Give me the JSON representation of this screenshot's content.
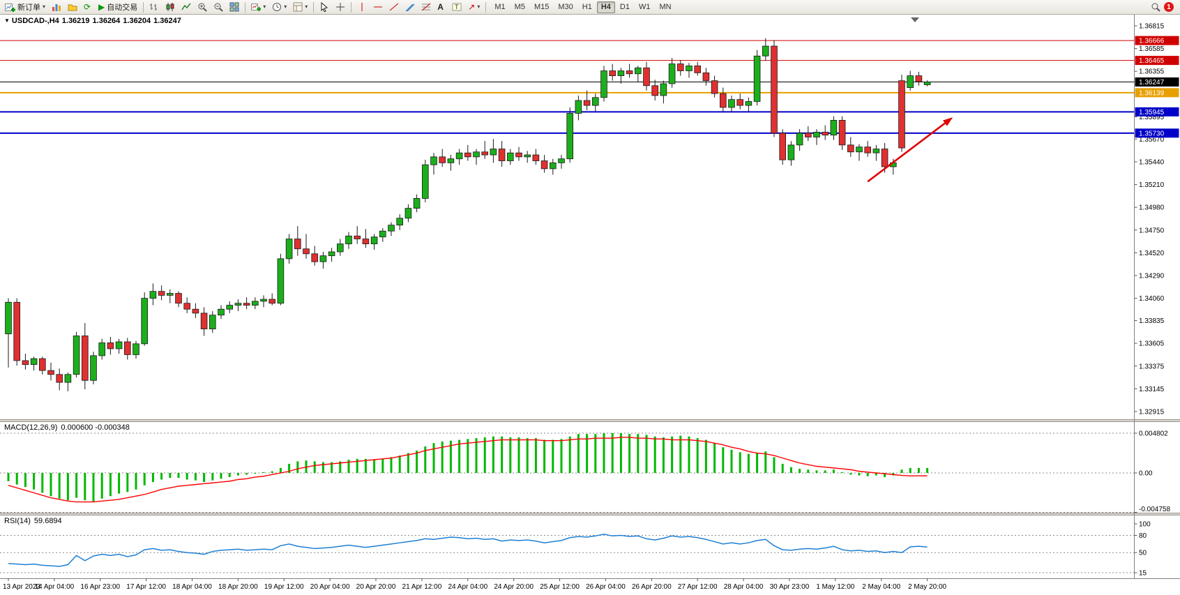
{
  "toolbar": {
    "new_order_label": "新订单",
    "autotrading_label": "自动交易",
    "timeframes": [
      "M1",
      "M5",
      "M15",
      "M30",
      "H1",
      "H4",
      "D1",
      "W1",
      "MN"
    ],
    "active_timeframe": "H4",
    "notification_count": "1"
  },
  "chart_data": [
    {
      "type": "candlestick",
      "title": "USDCAD-,H4",
      "symbol": "USDCAD-",
      "period": "H4",
      "ohlc": {
        "open": "1.36219",
        "high": "1.36264",
        "low": "1.36204",
        "close": "1.36247"
      },
      "up_color": "#1CAF1C",
      "down_color": "#E03030",
      "ylim": [
        1.32837,
        1.36914
      ],
      "y_ticks": [
        "1.36815",
        "1.36585",
        "1.36355",
        "1.35895",
        "1.35670",
        "1.35440",
        "1.35210",
        "1.34980",
        "1.34750",
        "1.34520",
        "1.34290",
        "1.34060",
        "1.33835",
        "1.33605",
        "1.33375",
        "1.33145",
        "1.32915"
      ],
      "levels": [
        {
          "price": 1.36666,
          "label": "1.36666",
          "color": "#D00000",
          "width": 1
        },
        {
          "price": 1.36465,
          "label": "1.36465",
          "color": "#D00000",
          "width": 1
        },
        {
          "price": 1.36247,
          "label": "1.36247",
          "color": "#000000",
          "width": 1
        },
        {
          "price": 1.36139,
          "label": "1.36139",
          "color": "#E8A000",
          "width": 2
        },
        {
          "price": 1.35945,
          "label": "1.35945",
          "color": "#0000C8",
          "width": 2
        },
        {
          "price": 1.3573,
          "label": "1.35730",
          "color": "#0000C8",
          "width": 2
        }
      ],
      "annotation_arrow": {
        "color": "#E00000",
        "from": {
          "bar": 101,
          "price": 1.3524
        },
        "to": {
          "bar": 111,
          "price": 1.3589
        }
      },
      "x_labels": [
        "13 Apr 2023",
        "14 Apr 04:00",
        "16 Apr 23:00",
        "17 Apr 12:00",
        "18 Apr 04:00",
        "18 Apr 20:00",
        "19 Apr 12:00",
        "20 Apr 04:00",
        "20 Apr 20:00",
        "21 Apr 12:00",
        "24 Apr 04:00",
        "24 Apr 20:00",
        "25 Apr 12:00",
        "26 Apr 04:00",
        "26 Apr 20:00",
        "27 Apr 12:00",
        "28 Apr 04:00",
        "30 Apr 23:00",
        "1 May 12:00",
        "2 May 04:00",
        "2 May 20:00"
      ],
      "candles": [
        [
          1.337,
          1.3406,
          1.3336,
          1.3402
        ],
        [
          1.3402,
          1.3406,
          1.3338,
          1.3343
        ],
        [
          1.3343,
          1.335,
          1.3334,
          1.3339
        ],
        [
          1.3339,
          1.3347,
          1.3333,
          1.3345
        ],
        [
          1.3345,
          1.3347,
          1.3329,
          1.3333
        ],
        [
          1.3333,
          1.3341,
          1.3323,
          1.3329
        ],
        [
          1.3329,
          1.3335,
          1.3313,
          1.3321
        ],
        [
          1.3321,
          1.3331,
          1.3312,
          1.3329
        ],
        [
          1.3329,
          1.3372,
          1.3326,
          1.3368
        ],
        [
          1.3368,
          1.3381,
          1.3314,
          1.3323
        ],
        [
          1.3323,
          1.3352,
          1.3319,
          1.3348
        ],
        [
          1.3348,
          1.3365,
          1.3344,
          1.3361
        ],
        [
          1.3361,
          1.3367,
          1.3349,
          1.3355
        ],
        [
          1.3355,
          1.3365,
          1.335,
          1.3362
        ],
        [
          1.3362,
          1.3366,
          1.3344,
          1.3349
        ],
        [
          1.3349,
          1.3363,
          1.3345,
          1.336
        ],
        [
          1.336,
          1.3412,
          1.3358,
          1.3406
        ],
        [
          1.3406,
          1.3421,
          1.3399,
          1.3413
        ],
        [
          1.3413,
          1.3419,
          1.3404,
          1.3409
        ],
        [
          1.3409,
          1.3415,
          1.3401,
          1.3411
        ],
        [
          1.3411,
          1.3413,
          1.3397,
          1.3401
        ],
        [
          1.3401,
          1.3407,
          1.3391,
          1.3395
        ],
        [
          1.3395,
          1.3401,
          1.3386,
          1.3391
        ],
        [
          1.3391,
          1.3397,
          1.3368,
          1.3375
        ],
        [
          1.3375,
          1.3393,
          1.3371,
          1.3389
        ],
        [
          1.3389,
          1.3399,
          1.3385,
          1.3395
        ],
        [
          1.3395,
          1.3403,
          1.3391,
          1.3399
        ],
        [
          1.3399,
          1.3405,
          1.3393,
          1.3401
        ],
        [
          1.3401,
          1.3407,
          1.3395,
          1.3399
        ],
        [
          1.3399,
          1.3407,
          1.3395,
          1.3403
        ],
        [
          1.3403,
          1.3409,
          1.3397,
          1.3405
        ],
        [
          1.3405,
          1.3411,
          1.3399,
          1.3401
        ],
        [
          1.3401,
          1.3451,
          1.3399,
          1.3446
        ],
        [
          1.3446,
          1.3471,
          1.3441,
          1.3466
        ],
        [
          1.3466,
          1.3479,
          1.3449,
          1.3456
        ],
        [
          1.3456,
          1.3471,
          1.3446,
          1.3451
        ],
        [
          1.3451,
          1.3459,
          1.3439,
          1.3443
        ],
        [
          1.3443,
          1.3453,
          1.3436,
          1.3449
        ],
        [
          1.3449,
          1.3457,
          1.3443,
          1.3453
        ],
        [
          1.3453,
          1.3466,
          1.3449,
          1.3461
        ],
        [
          1.3461,
          1.3473,
          1.3456,
          1.3469
        ],
        [
          1.3469,
          1.3479,
          1.3461,
          1.3466
        ],
        [
          1.3466,
          1.3476,
          1.3457,
          1.3461
        ],
        [
          1.3461,
          1.3471,
          1.3455,
          1.3468
        ],
        [
          1.3468,
          1.3477,
          1.3463,
          1.3474
        ],
        [
          1.3474,
          1.3483,
          1.3469,
          1.348
        ],
        [
          1.348,
          1.3491,
          1.3475,
          1.3487
        ],
        [
          1.3487,
          1.3501,
          1.3483,
          1.3497
        ],
        [
          1.3497,
          1.3511,
          1.3493,
          1.3507
        ],
        [
          1.3507,
          1.3546,
          1.3503,
          1.3541
        ],
        [
          1.3541,
          1.3553,
          1.3531,
          1.3549
        ],
        [
          1.3549,
          1.3557,
          1.3539,
          1.3543
        ],
        [
          1.3543,
          1.3551,
          1.3535,
          1.3547
        ],
        [
          1.3547,
          1.3557,
          1.3541,
          1.3553
        ],
        [
          1.3553,
          1.3561,
          1.3545,
          1.3549
        ],
        [
          1.3549,
          1.3557,
          1.3541,
          1.3554
        ],
        [
          1.3554,
          1.3565,
          1.3547,
          1.3551
        ],
        [
          1.3551,
          1.3567,
          1.3543,
          1.3557
        ],
        [
          1.3557,
          1.3565,
          1.3539,
          1.3545
        ],
        [
          1.3545,
          1.3557,
          1.3541,
          1.3553
        ],
        [
          1.3553,
          1.3559,
          1.3545,
          1.3549
        ],
        [
          1.3549,
          1.3555,
          1.3543,
          1.3551
        ],
        [
          1.3551,
          1.3557,
          1.3541,
          1.3545
        ],
        [
          1.3545,
          1.3551,
          1.3533,
          1.3537
        ],
        [
          1.3537,
          1.3547,
          1.3531,
          1.3543
        ],
        [
          1.3543,
          1.3551,
          1.3537,
          1.3547
        ],
        [
          1.3547,
          1.3599,
          1.3543,
          1.3593
        ],
        [
          1.3593,
          1.3611,
          1.3586,
          1.3606
        ],
        [
          1.3606,
          1.3616,
          1.3596,
          1.3601
        ],
        [
          1.3601,
          1.3613,
          1.3595,
          1.3609
        ],
        [
          1.3609,
          1.3641,
          1.3605,
          1.3636
        ],
        [
          1.3636,
          1.3643,
          1.3626,
          1.3631
        ],
        [
          1.3631,
          1.3639,
          1.3623,
          1.3636
        ],
        [
          1.3636,
          1.3643,
          1.3629,
          1.3633
        ],
        [
          1.3633,
          1.3641,
          1.3625,
          1.3639
        ],
        [
          1.3639,
          1.3645,
          1.3616,
          1.3621
        ],
        [
          1.3621,
          1.3627,
          1.3606,
          1.3611
        ],
        [
          1.3611,
          1.3626,
          1.3603,
          1.3623
        ],
        [
          1.3623,
          1.3649,
          1.3619,
          1.3643
        ],
        [
          1.3643,
          1.3647,
          1.3631,
          1.3636
        ],
        [
          1.3636,
          1.3644,
          1.3629,
          1.3641
        ],
        [
          1.3641,
          1.3645,
          1.3631,
          1.3634
        ],
        [
          1.3634,
          1.3639,
          1.3621,
          1.3626
        ],
        [
          1.3626,
          1.3631,
          1.3609,
          1.3613
        ],
        [
          1.3613,
          1.3619,
          1.3595,
          1.3599
        ],
        [
          1.3599,
          1.3611,
          1.3594,
          1.3607
        ],
        [
          1.3607,
          1.3613,
          1.3597,
          1.3601
        ],
        [
          1.3601,
          1.3609,
          1.3595,
          1.3605
        ],
        [
          1.3605,
          1.3657,
          1.3601,
          1.3651
        ],
        [
          1.3651,
          1.3669,
          1.3646,
          1.3661
        ],
        [
          1.3661,
          1.3667,
          1.3569,
          1.3573
        ],
        [
          1.3573,
          1.3577,
          1.3541,
          1.3546
        ],
        [
          1.3546,
          1.3565,
          1.354,
          1.3561
        ],
        [
          1.3561,
          1.3577,
          1.3555,
          1.3573
        ],
        [
          1.3573,
          1.358,
          1.3565,
          1.3569
        ],
        [
          1.3569,
          1.3577,
          1.3561,
          1.3574
        ],
        [
          1.3574,
          1.3581,
          1.3566,
          1.3571
        ],
        [
          1.3571,
          1.359,
          1.3566,
          1.3586
        ],
        [
          1.3586,
          1.359,
          1.3556,
          1.3561
        ],
        [
          1.3561,
          1.3569,
          1.3549,
          1.3554
        ],
        [
          1.3554,
          1.3562,
          1.3545,
          1.3559
        ],
        [
          1.3559,
          1.3565,
          1.3549,
          1.3553
        ],
        [
          1.3553,
          1.3561,
          1.3545,
          1.3557
        ],
        [
          1.3557,
          1.3563,
          1.3533,
          1.3539
        ],
        [
          1.3539,
          1.3547,
          1.3531,
          1.3543
        ],
        [
          1.3626,
          1.3632,
          1.3554,
          1.3558
        ],
        [
          1.3619,
          1.3636,
          1.3616,
          1.3631
        ],
        [
          1.3631,
          1.3635,
          1.3621,
          1.3625
        ],
        [
          1.36219,
          1.36264,
          1.36204,
          1.36247
        ]
      ]
    },
    {
      "type": "macd",
      "label": "MACD(12,26,9)",
      "values_text": "0.000600 -0.000348",
      "y_ticks": [
        "0.004802",
        "0.00",
        "-0.004758"
      ],
      "levels": [
        0.004802,
        0,
        -0.004758
      ],
      "hist_color": "#00B800",
      "signal_color": "#FF0000",
      "histogram": [
        -0.001,
        -0.0014,
        -0.0017,
        -0.002,
        -0.0024,
        -0.0028,
        -0.0031,
        -0.0033,
        -0.003,
        -0.0033,
        -0.0035,
        -0.0031,
        -0.0028,
        -0.0025,
        -0.0023,
        -0.002,
        -0.0015,
        -0.0011,
        -0.0008,
        -0.0006,
        -0.0006,
        -0.0008,
        -0.0009,
        -0.0011,
        -0.0009,
        -0.0007,
        -0.0005,
        -0.0003,
        -0.0002,
        -0.0001,
        0.0001,
        0.0002,
        0.0006,
        0.0011,
        0.0014,
        0.0015,
        0.0014,
        0.0013,
        0.0013,
        0.0014,
        0.0016,
        0.0017,
        0.0017,
        0.0016,
        0.0017,
        0.0019,
        0.0021,
        0.0024,
        0.0027,
        0.0032,
        0.0036,
        0.0038,
        0.0039,
        0.004,
        0.0041,
        0.0042,
        0.0043,
        0.0044,
        0.0044,
        0.0043,
        0.0043,
        0.0042,
        0.0042,
        0.004,
        0.004,
        0.0041,
        0.0044,
        0.0047,
        0.0047,
        0.0047,
        0.0048,
        0.0048,
        0.0048,
        0.0047,
        0.0047,
        0.0046,
        0.0044,
        0.0043,
        0.0044,
        0.0045,
        0.0044,
        0.0042,
        0.004,
        0.0036,
        0.0031,
        0.0028,
        0.0025,
        0.0023,
        0.0024,
        0.0026,
        0.0019,
        0.0011,
        0.0007,
        0.0005,
        0.0004,
        0.0003,
        0.0003,
        0.0004,
        0.0001,
        -0.0002,
        -0.0003,
        -0.0004,
        -0.0003,
        -0.0005,
        -0.0003,
        0.0004,
        0.0006,
        0.0006,
        0.0006
      ],
      "signal": [
        -0.0015,
        -0.0018,
        -0.0021,
        -0.0024,
        -0.0027,
        -0.003,
        -0.0032,
        -0.0034,
        -0.0035,
        -0.0035,
        -0.0035,
        -0.0034,
        -0.0033,
        -0.0032,
        -0.003,
        -0.0028,
        -0.0026,
        -0.0023,
        -0.002,
        -0.0018,
        -0.0016,
        -0.0015,
        -0.0014,
        -0.0013,
        -0.0012,
        -0.0011,
        -0.001,
        -0.0008,
        -0.0007,
        -0.0005,
        -0.0004,
        -0.0002,
        0.0,
        0.0002,
        0.0005,
        0.0007,
        0.0009,
        0.001,
        0.0011,
        0.0012,
        0.0013,
        0.0014,
        0.0015,
        0.0016,
        0.0017,
        0.0018,
        0.002,
        0.0022,
        0.0024,
        0.0027,
        0.0029,
        0.0031,
        0.0033,
        0.0035,
        0.0036,
        0.0037,
        0.0038,
        0.0039,
        0.004,
        0.004,
        0.004,
        0.004,
        0.004,
        0.0039,
        0.0039,
        0.0039,
        0.004,
        0.0041,
        0.0041,
        0.0042,
        0.0042,
        0.0042,
        0.0043,
        0.0043,
        0.0042,
        0.0042,
        0.0041,
        0.0041,
        0.004,
        0.004,
        0.004,
        0.0039,
        0.0038,
        0.0036,
        0.0034,
        0.0031,
        0.0029,
        0.0026,
        0.0024,
        0.0023,
        0.0021,
        0.0018,
        0.0015,
        0.0012,
        0.001,
        0.0008,
        0.0007,
        0.0006,
        0.0005,
        0.0004,
        0.0002,
        0.0001,
        0.0,
        -0.0001,
        -0.0002,
        -0.0003,
        -0.00035,
        -0.00035,
        -0.000348
      ]
    },
    {
      "type": "rsi",
      "label": "RSI(14)",
      "value_text": "59.6894",
      "y_ticks": [
        "100",
        "80",
        "50",
        "15"
      ],
      "levels": [
        80,
        50,
        15
      ],
      "line_color": "#1E7FD4",
      "values": [
        31,
        30,
        29,
        30,
        28,
        27,
        26,
        29,
        45,
        36,
        44,
        47,
        45,
        47,
        43,
        46,
        55,
        57,
        54,
        55,
        52,
        50,
        49,
        47,
        52,
        54,
        55,
        56,
        54,
        55,
        56,
        55,
        62,
        65,
        61,
        59,
        57,
        58,
        59,
        61,
        63,
        61,
        59,
        61,
        63,
        65,
        67,
        69,
        71,
        74,
        73,
        75,
        77,
        76,
        74,
        75,
        73,
        74,
        70,
        72,
        71,
        72,
        70,
        67,
        69,
        71,
        76,
        78,
        77,
        79,
        82,
        79,
        80,
        78,
        79,
        74,
        72,
        75,
        79,
        77,
        78,
        76,
        73,
        69,
        65,
        67,
        65,
        67,
        71,
        73,
        62,
        55,
        54,
        56,
        57,
        56,
        58,
        61,
        55,
        53,
        54,
        52,
        53,
        50,
        52,
        50,
        60,
        61,
        59.6894
      ]
    }
  ]
}
